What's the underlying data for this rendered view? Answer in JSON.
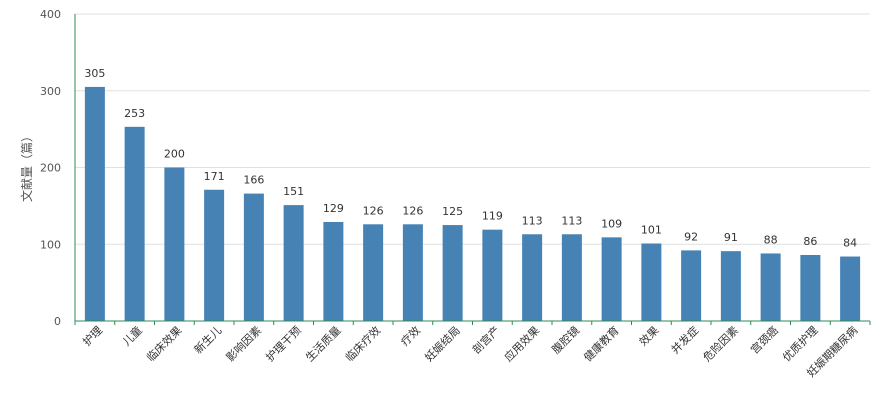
{
  "chart_data": {
    "type": "bar",
    "title": "",
    "xlabel": "",
    "ylabel": "文献量（篇）",
    "ylim": [
      0,
      400
    ],
    "yticks": [
      0,
      100,
      200,
      300,
      400
    ],
    "grid": true,
    "legend": "none",
    "bar_color": "#4682b4",
    "axis_color": "#2e8b57",
    "grid_color": "#e0e0e0",
    "categories": [
      "护理",
      "儿童",
      "临床效果",
      "新生儿",
      "影响因素",
      "护理干预",
      "生活质量",
      "临床疗效",
      "疗效",
      "妊娠结局",
      "剖宫产",
      "应用效果",
      "腹腔镜",
      "健康教育",
      "效果",
      "并发症",
      "危险因素",
      "宫颈癌",
      "优质护理",
      "妊娠期糖尿病"
    ],
    "values": [
      305,
      253,
      200,
      171,
      166,
      151,
      129,
      126,
      126,
      125,
      119,
      113,
      113,
      109,
      101,
      92,
      91,
      88,
      86,
      84
    ]
  }
}
